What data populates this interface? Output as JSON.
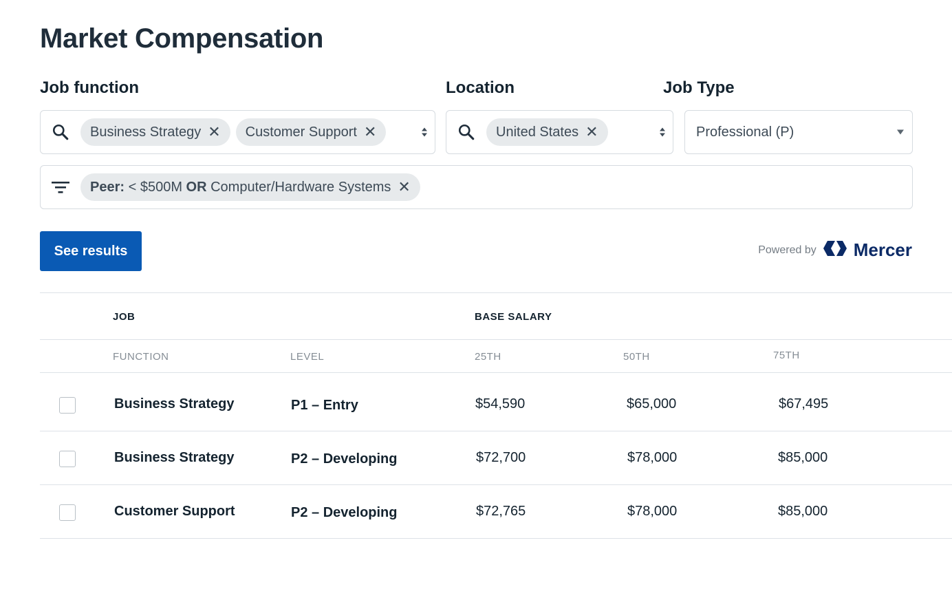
{
  "page": {
    "title": "Market Compensation"
  },
  "filters": {
    "job_function": {
      "label": "Job function",
      "chips": [
        "Business Strategy",
        "Customer Support"
      ]
    },
    "location": {
      "label": "Location",
      "chips": [
        "United States"
      ]
    },
    "job_type": {
      "label": "Job Type",
      "value": "Professional (P)"
    },
    "peer": {
      "prefix": "Peer:",
      "part1": "< $500M",
      "operator": "OR",
      "part2": "Computer/Hardware Systems"
    },
    "remove_glyph": "✕"
  },
  "actions": {
    "see_results": "See results"
  },
  "branding": {
    "powered_by": "Powered by",
    "brand_name": "Mercer",
    "brand_color": "#0b2a66"
  },
  "table": {
    "group_headers": {
      "job": "JOB",
      "base_salary": "BASE SALARY"
    },
    "sub_headers": {
      "function": "FUNCTION",
      "level": "LEVEL",
      "p25": "25TH",
      "p50": "50TH",
      "p75": "75TH"
    },
    "rows": [
      {
        "function": "Business Strategy",
        "level": "P1 – Entry",
        "p25": "$54,590",
        "p50": "$65,000",
        "p75": "$67,495"
      },
      {
        "function": "Business Strategy",
        "level": "P2 – Developing",
        "p25": "$72,700",
        "p50": "$78,000",
        "p75": "$85,000"
      },
      {
        "function": "Customer Support",
        "level": "P2 – Developing",
        "p25": "$72,765",
        "p50": "$78,000",
        "p75": "$85,000"
      }
    ]
  },
  "colors": {
    "primary_button": "#0a5ab4",
    "chip_bg": "#e7eaec",
    "text": "#14232f"
  }
}
